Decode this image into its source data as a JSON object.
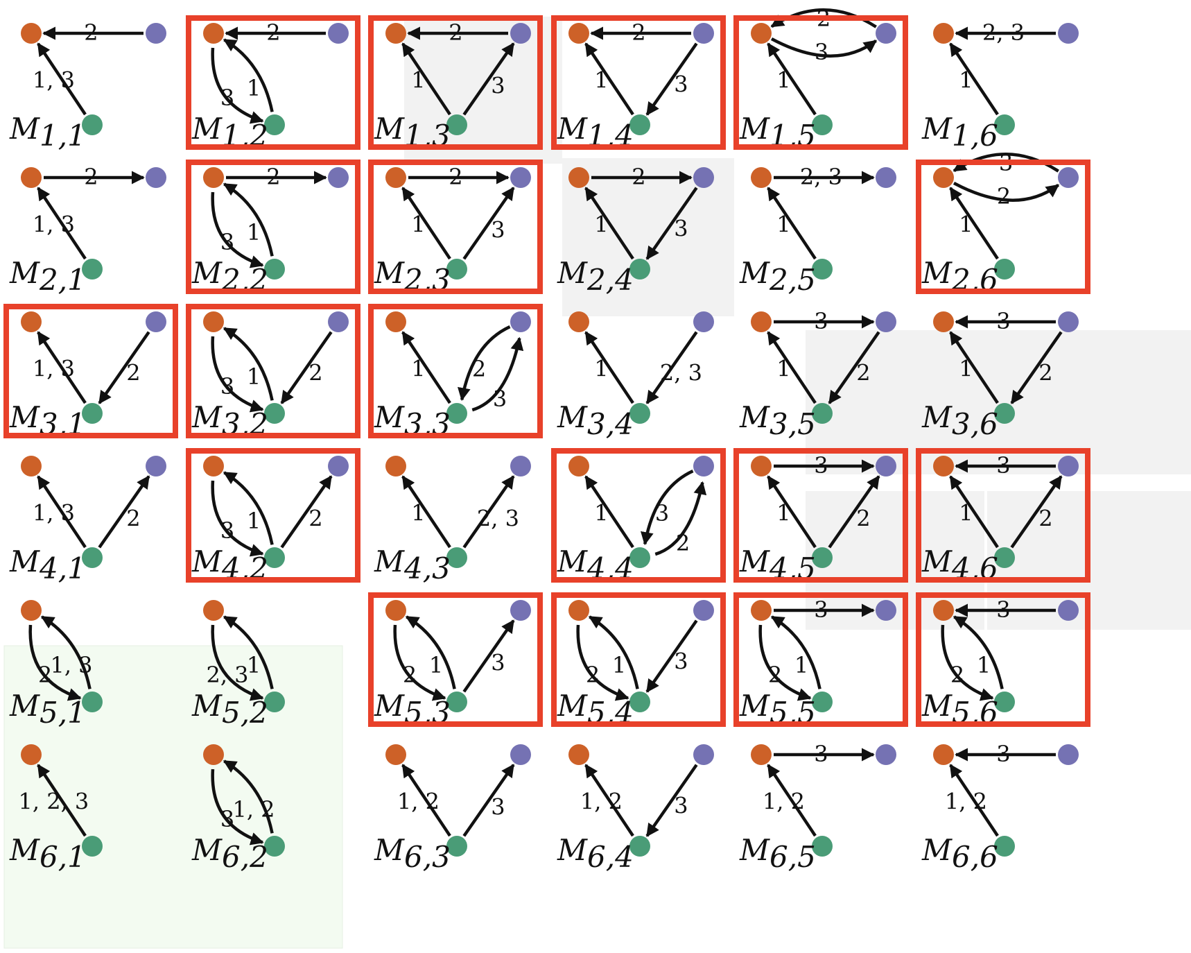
{
  "colors": {
    "source_node": "#cd6128",
    "target_node": "#7572b3",
    "third_node": "#4a9c77",
    "highlight_border": "#e8412a",
    "gray_region": "#f2f2f2",
    "green_region": "#f3fbf1",
    "edge": "#111111"
  },
  "panel_letter": "M",
  "panels": [
    {
      "i": 1,
      "j": 1,
      "sub": "1,1",
      "box": false,
      "edges": [
        {
          "k": "TO",
          "l": "2"
        },
        {
          "k": "GO",
          "l": "1, 3"
        }
      ]
    },
    {
      "i": 1,
      "j": 2,
      "sub": "1,2",
      "box": true,
      "edges": [
        {
          "k": "TO",
          "l": "2"
        },
        {
          "k": "GO2",
          "l": "1"
        },
        {
          "k": "OG2",
          "l": "3"
        }
      ]
    },
    {
      "i": 1,
      "j": 3,
      "sub": "1,3",
      "box": true,
      "edges": [
        {
          "k": "TO",
          "l": "2"
        },
        {
          "k": "GO",
          "l": "1"
        },
        {
          "k": "GT",
          "l": "3"
        }
      ]
    },
    {
      "i": 1,
      "j": 4,
      "sub": "1,4",
      "box": true,
      "edges": [
        {
          "k": "TO",
          "l": "2"
        },
        {
          "k": "GO",
          "l": "1"
        },
        {
          "k": "TG",
          "l": "3"
        }
      ]
    },
    {
      "i": 1,
      "j": 5,
      "sub": "1,5",
      "box": true,
      "edges": [
        {
          "k": "TOc",
          "l": "2"
        },
        {
          "k": "OTc",
          "l": "3"
        },
        {
          "k": "GO",
          "l": "1"
        }
      ]
    },
    {
      "i": 1,
      "j": 6,
      "sub": "1,6",
      "box": false,
      "edges": [
        {
          "k": "TO",
          "l": "2, 3"
        },
        {
          "k": "GO",
          "l": "1"
        }
      ]
    },
    {
      "i": 2,
      "j": 1,
      "sub": "2,1",
      "box": false,
      "edges": [
        {
          "k": "OT",
          "l": "2"
        },
        {
          "k": "GO",
          "l": "1, 3"
        }
      ]
    },
    {
      "i": 2,
      "j": 2,
      "sub": "2,2",
      "box": true,
      "edges": [
        {
          "k": "OT",
          "l": "2"
        },
        {
          "k": "GO2",
          "l": "1"
        },
        {
          "k": "OG2",
          "l": "3"
        }
      ]
    },
    {
      "i": 2,
      "j": 3,
      "sub": "2,3",
      "box": true,
      "edges": [
        {
          "k": "OT",
          "l": "2"
        },
        {
          "k": "GO",
          "l": "1"
        },
        {
          "k": "GT",
          "l": "3"
        }
      ]
    },
    {
      "i": 2,
      "j": 4,
      "sub": "2,4",
      "box": false,
      "edges": [
        {
          "k": "OT",
          "l": "2"
        },
        {
          "k": "GO",
          "l": "1"
        },
        {
          "k": "TG",
          "l": "3"
        }
      ]
    },
    {
      "i": 2,
      "j": 5,
      "sub": "2,5",
      "box": false,
      "edges": [
        {
          "k": "OT",
          "l": "2, 3"
        },
        {
          "k": "GO",
          "l": "1"
        }
      ]
    },
    {
      "i": 2,
      "j": 6,
      "sub": "2,6",
      "box": true,
      "edges": [
        {
          "k": "TOc",
          "l": "3"
        },
        {
          "k": "OTc",
          "l": "2"
        },
        {
          "k": "GO",
          "l": "1"
        }
      ]
    },
    {
      "i": 3,
      "j": 1,
      "sub": "3,1",
      "box": true,
      "edges": [
        {
          "k": "GO",
          "l": "1, 3"
        },
        {
          "k": "TG",
          "l": "2"
        }
      ]
    },
    {
      "i": 3,
      "j": 2,
      "sub": "3,2",
      "box": true,
      "edges": [
        {
          "k": "GO2",
          "l": "1"
        },
        {
          "k": "OG2",
          "l": "3"
        },
        {
          "k": "TG",
          "l": "2"
        }
      ]
    },
    {
      "i": 3,
      "j": 3,
      "sub": "3,3",
      "box": true,
      "edges": [
        {
          "k": "GO",
          "l": "1"
        },
        {
          "k": "TG2",
          "l": "2"
        },
        {
          "k": "GT2",
          "l": "3"
        }
      ]
    },
    {
      "i": 3,
      "j": 4,
      "sub": "3,4",
      "box": false,
      "edges": [
        {
          "k": "GO",
          "l": "1"
        },
        {
          "k": "TG",
          "l": "2, 3"
        }
      ]
    },
    {
      "i": 3,
      "j": 5,
      "sub": "3,5",
      "box": false,
      "edges": [
        {
          "k": "OT",
          "l": "3"
        },
        {
          "k": "GO",
          "l": "1"
        },
        {
          "k": "TG",
          "l": "2"
        }
      ]
    },
    {
      "i": 3,
      "j": 6,
      "sub": "3,6",
      "box": false,
      "edges": [
        {
          "k": "TO",
          "l": "3"
        },
        {
          "k": "GO",
          "l": "1"
        },
        {
          "k": "TG",
          "l": "2"
        }
      ]
    },
    {
      "i": 4,
      "j": 1,
      "sub": "4,1",
      "box": false,
      "edges": [
        {
          "k": "GO",
          "l": "1, 3"
        },
        {
          "k": "GT",
          "l": "2"
        }
      ]
    },
    {
      "i": 4,
      "j": 2,
      "sub": "4,2",
      "box": true,
      "edges": [
        {
          "k": "GO2",
          "l": "1"
        },
        {
          "k": "OG2",
          "l": "3"
        },
        {
          "k": "GT",
          "l": "2"
        }
      ]
    },
    {
      "i": 4,
      "j": 3,
      "sub": "4,3",
      "box": false,
      "edges": [
        {
          "k": "GO",
          "l": "1"
        },
        {
          "k": "GT",
          "l": "2, 3"
        }
      ]
    },
    {
      "i": 4,
      "j": 4,
      "sub": "4,4",
      "box": true,
      "edges": [
        {
          "k": "GO",
          "l": "1"
        },
        {
          "k": "TG2",
          "l": "3"
        },
        {
          "k": "GT2",
          "l": "2"
        }
      ]
    },
    {
      "i": 4,
      "j": 5,
      "sub": "4,5",
      "box": true,
      "edges": [
        {
          "k": "OT",
          "l": "3"
        },
        {
          "k": "GO",
          "l": "1"
        },
        {
          "k": "GT",
          "l": "2"
        }
      ]
    },
    {
      "i": 4,
      "j": 6,
      "sub": "4,6",
      "box": true,
      "edges": [
        {
          "k": "TO",
          "l": "3"
        },
        {
          "k": "GO",
          "l": "1"
        },
        {
          "k": "GT",
          "l": "2"
        }
      ]
    },
    {
      "i": 5,
      "j": 1,
      "sub": "5,1",
      "box": false,
      "two": true,
      "edges": [
        {
          "k": "GO2",
          "l": "1, 3"
        },
        {
          "k": "OG2",
          "l": "2"
        }
      ]
    },
    {
      "i": 5,
      "j": 2,
      "sub": "5,2",
      "box": false,
      "two": true,
      "edges": [
        {
          "k": "GO2",
          "l": "1"
        },
        {
          "k": "OG2",
          "l": "2, 3"
        }
      ]
    },
    {
      "i": 5,
      "j": 3,
      "sub": "5,3",
      "box": true,
      "edges": [
        {
          "k": "GO2",
          "l": "1"
        },
        {
          "k": "OG2",
          "l": "2"
        },
        {
          "k": "GT",
          "l": "3"
        }
      ]
    },
    {
      "i": 5,
      "j": 4,
      "sub": "5,4",
      "box": true,
      "edges": [
        {
          "k": "GO2",
          "l": "1"
        },
        {
          "k": "OG2",
          "l": "2"
        },
        {
          "k": "TG",
          "l": "3"
        }
      ]
    },
    {
      "i": 5,
      "j": 5,
      "sub": "5,5",
      "box": true,
      "edges": [
        {
          "k": "OT",
          "l": "3"
        },
        {
          "k": "GO2",
          "l": "1"
        },
        {
          "k": "OG2",
          "l": "2"
        }
      ]
    },
    {
      "i": 5,
      "j": 6,
      "sub": "5,6",
      "box": true,
      "edges": [
        {
          "k": "TO",
          "l": "3"
        },
        {
          "k": "GO2",
          "l": "1"
        },
        {
          "k": "OG2",
          "l": "2"
        }
      ]
    },
    {
      "i": 6,
      "j": 1,
      "sub": "6,1",
      "box": false,
      "two": true,
      "edges": [
        {
          "k": "GO",
          "l": "1, 2, 3"
        }
      ]
    },
    {
      "i": 6,
      "j": 2,
      "sub": "6,2",
      "box": false,
      "two": true,
      "edges": [
        {
          "k": "GO2",
          "l": "1, 2"
        },
        {
          "k": "OG2",
          "l": "3"
        }
      ]
    },
    {
      "i": 6,
      "j": 3,
      "sub": "6,3",
      "box": false,
      "edges": [
        {
          "k": "GO",
          "l": "1, 2"
        },
        {
          "k": "GT",
          "l": "3"
        }
      ]
    },
    {
      "i": 6,
      "j": 4,
      "sub": "6,4",
      "box": false,
      "edges": [
        {
          "k": "GO",
          "l": "1, 2"
        },
        {
          "k": "TG",
          "l": "3"
        }
      ]
    },
    {
      "i": 6,
      "j": 5,
      "sub": "6,5",
      "box": false,
      "edges": [
        {
          "k": "OT",
          "l": "3"
        },
        {
          "k": "GO",
          "l": "1, 2"
        }
      ]
    },
    {
      "i": 6,
      "j": 6,
      "sub": "6,6",
      "box": false,
      "edges": [
        {
          "k": "TO",
          "l": "3"
        },
        {
          "k": "GO",
          "l": "1, 2"
        }
      ]
    }
  ]
}
